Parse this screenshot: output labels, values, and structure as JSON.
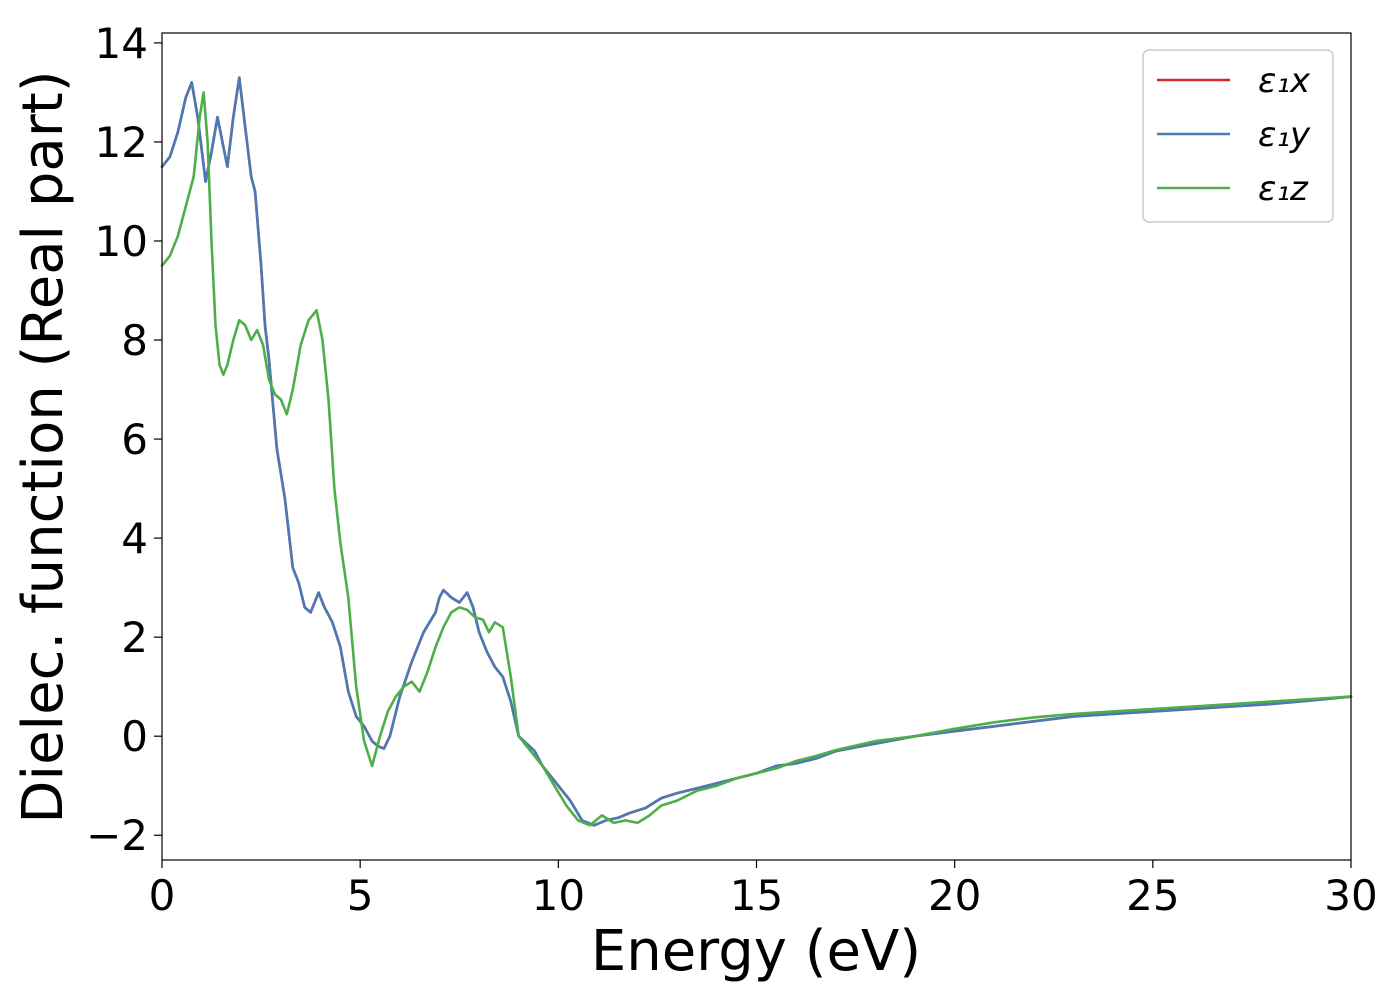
{
  "chart_data": {
    "type": "line",
    "xlabel": "Energy (eV)",
    "ylabel": "Dielec. function (Real part)",
    "xlim": [
      0,
      30
    ],
    "ylim": [
      -2.5,
      14.2
    ],
    "xticks": [
      0,
      5,
      10,
      15,
      20,
      25,
      30
    ],
    "yticks": [
      -2,
      0,
      2,
      4,
      6,
      8,
      10,
      12,
      14
    ],
    "ytick_labels": [
      "−2",
      "0",
      "2",
      "4",
      "6",
      "8",
      "10",
      "12",
      "14"
    ],
    "grid": false,
    "legend_position": "top-right",
    "series": [
      {
        "name": "ε₁x",
        "color": "#d62728",
        "x": [
          0,
          0.2,
          0.4,
          0.6,
          0.75,
          0.9,
          1.1,
          1.25,
          1.4,
          1.55,
          1.65,
          1.8,
          1.95,
          2.1,
          2.25,
          2.35,
          2.5,
          2.6,
          2.7,
          2.9,
          3.1,
          3.3,
          3.45,
          3.6,
          3.75,
          3.95,
          4.1,
          4.3,
          4.5,
          4.7,
          4.9,
          5.1,
          5.3,
          5.45,
          5.6,
          5.75,
          6.0,
          6.3,
          6.6,
          6.9,
          7.0,
          7.1,
          7.3,
          7.5,
          7.7,
          7.85,
          8.0,
          8.2,
          8.4,
          8.6,
          8.8,
          9.0,
          9.2,
          9.4,
          9.6,
          9.8,
          10.0,
          10.3,
          10.6,
          10.9,
          11.2,
          11.5,
          11.8,
          12.2,
          12.6,
          13.0,
          13.5,
          14.0,
          14.5,
          15.0,
          15.5,
          16.0,
          16.5,
          17.0,
          18.0,
          19.0,
          20.0,
          21.0,
          22.0,
          23.0,
          24.0,
          25.0,
          26.0,
          27.0,
          28.0,
          29.0,
          30.0
        ],
        "y": [
          11.5,
          11.7,
          12.2,
          12.9,
          13.2,
          12.5,
          11.2,
          11.8,
          12.5,
          11.9,
          11.5,
          12.5,
          13.3,
          12.3,
          11.3,
          11.0,
          9.5,
          8.3,
          7.6,
          5.8,
          4.8,
          3.4,
          3.1,
          2.6,
          2.5,
          2.9,
          2.6,
          2.3,
          1.8,
          0.9,
          0.4,
          0.2,
          -0.1,
          -0.2,
          -0.25,
          0.0,
          0.8,
          1.5,
          2.1,
          2.5,
          2.8,
          2.95,
          2.8,
          2.7,
          2.9,
          2.6,
          2.1,
          1.7,
          1.4,
          1.2,
          0.7,
          0.0,
          -0.15,
          -0.3,
          -0.6,
          -0.8,
          -1.0,
          -1.3,
          -1.7,
          -1.8,
          -1.7,
          -1.65,
          -1.55,
          -1.45,
          -1.25,
          -1.15,
          -1.05,
          -0.95,
          -0.85,
          -0.75,
          -0.6,
          -0.55,
          -0.45,
          -0.3,
          -0.15,
          0.0,
          0.1,
          0.2,
          0.3,
          0.4,
          0.45,
          0.5,
          0.55,
          0.6,
          0.65,
          0.72,
          0.8
        ]
      },
      {
        "name": "ε₁y",
        "color": "#4a7ab5",
        "x": [
          0,
          0.2,
          0.4,
          0.6,
          0.75,
          0.9,
          1.1,
          1.25,
          1.4,
          1.55,
          1.65,
          1.8,
          1.95,
          2.1,
          2.25,
          2.35,
          2.5,
          2.6,
          2.7,
          2.9,
          3.1,
          3.3,
          3.45,
          3.6,
          3.75,
          3.95,
          4.1,
          4.3,
          4.5,
          4.7,
          4.9,
          5.1,
          5.3,
          5.45,
          5.6,
          5.75,
          6.0,
          6.3,
          6.6,
          6.9,
          7.0,
          7.1,
          7.3,
          7.5,
          7.7,
          7.85,
          8.0,
          8.2,
          8.4,
          8.6,
          8.8,
          9.0,
          9.2,
          9.4,
          9.6,
          9.8,
          10.0,
          10.3,
          10.6,
          10.9,
          11.2,
          11.5,
          11.8,
          12.2,
          12.6,
          13.0,
          13.5,
          14.0,
          14.5,
          15.0,
          15.5,
          16.0,
          16.5,
          17.0,
          18.0,
          19.0,
          20.0,
          21.0,
          22.0,
          23.0,
          24.0,
          25.0,
          26.0,
          27.0,
          28.0,
          29.0,
          30.0
        ],
        "y": [
          11.5,
          11.7,
          12.2,
          12.9,
          13.2,
          12.5,
          11.2,
          11.8,
          12.5,
          11.9,
          11.5,
          12.5,
          13.3,
          12.3,
          11.3,
          11.0,
          9.5,
          8.3,
          7.6,
          5.8,
          4.8,
          3.4,
          3.1,
          2.6,
          2.5,
          2.9,
          2.6,
          2.3,
          1.8,
          0.9,
          0.4,
          0.2,
          -0.1,
          -0.2,
          -0.25,
          0.0,
          0.8,
          1.5,
          2.1,
          2.5,
          2.8,
          2.95,
          2.8,
          2.7,
          2.9,
          2.6,
          2.1,
          1.7,
          1.4,
          1.2,
          0.7,
          0.0,
          -0.15,
          -0.3,
          -0.6,
          -0.8,
          -1.0,
          -1.3,
          -1.7,
          -1.8,
          -1.7,
          -1.65,
          -1.55,
          -1.45,
          -1.25,
          -1.15,
          -1.05,
          -0.95,
          -0.85,
          -0.75,
          -0.6,
          -0.55,
          -0.45,
          -0.3,
          -0.15,
          0.0,
          0.1,
          0.2,
          0.3,
          0.4,
          0.45,
          0.5,
          0.55,
          0.6,
          0.65,
          0.72,
          0.8
        ]
      },
      {
        "name": "ε₁z",
        "color": "#4daf4a",
        "x": [
          0,
          0.2,
          0.4,
          0.6,
          0.8,
          0.95,
          1.05,
          1.15,
          1.25,
          1.35,
          1.45,
          1.55,
          1.65,
          1.8,
          1.95,
          2.1,
          2.25,
          2.4,
          2.55,
          2.7,
          2.85,
          3.0,
          3.15,
          3.3,
          3.5,
          3.7,
          3.9,
          4.05,
          4.2,
          4.35,
          4.5,
          4.7,
          4.9,
          5.1,
          5.3,
          5.5,
          5.7,
          5.9,
          6.1,
          6.3,
          6.5,
          6.7,
          6.9,
          7.1,
          7.3,
          7.5,
          7.7,
          7.9,
          8.1,
          8.25,
          8.4,
          8.6,
          8.8,
          9.0,
          9.3,
          9.6,
          9.9,
          10.2,
          10.5,
          10.8,
          11.1,
          11.4,
          11.7,
          12.0,
          12.3,
          12.6,
          13.0,
          13.5,
          14.0,
          14.5,
          15.0,
          15.5,
          16.0,
          16.5,
          17.0,
          18.0,
          19.0,
          20.0,
          21.0,
          22.0,
          23.0,
          24.0,
          25.0,
          26.0,
          27.0,
          28.0,
          29.0,
          30.0
        ],
        "y": [
          9.5,
          9.7,
          10.1,
          10.7,
          11.3,
          12.5,
          13.0,
          12.0,
          10.0,
          8.3,
          7.5,
          7.3,
          7.5,
          8.0,
          8.4,
          8.3,
          8.0,
          8.2,
          7.9,
          7.2,
          6.9,
          6.8,
          6.5,
          7.0,
          7.9,
          8.4,
          8.6,
          8.0,
          6.8,
          5.0,
          3.9,
          2.8,
          1.0,
          -0.1,
          -0.6,
          0.0,
          0.5,
          0.8,
          1.0,
          1.1,
          0.9,
          1.3,
          1.8,
          2.2,
          2.5,
          2.6,
          2.55,
          2.4,
          2.35,
          2.1,
          2.3,
          2.2,
          1.2,
          0.0,
          -0.3,
          -0.6,
          -1.0,
          -1.4,
          -1.7,
          -1.8,
          -1.6,
          -1.75,
          -1.7,
          -1.75,
          -1.6,
          -1.4,
          -1.3,
          -1.1,
          -1.0,
          -0.85,
          -0.75,
          -0.65,
          -0.5,
          -0.4,
          -0.28,
          -0.1,
          0.0,
          0.15,
          0.28,
          0.38,
          0.45,
          0.5,
          0.55,
          0.6,
          0.65,
          0.7,
          0.75,
          0.8
        ]
      }
    ]
  }
}
